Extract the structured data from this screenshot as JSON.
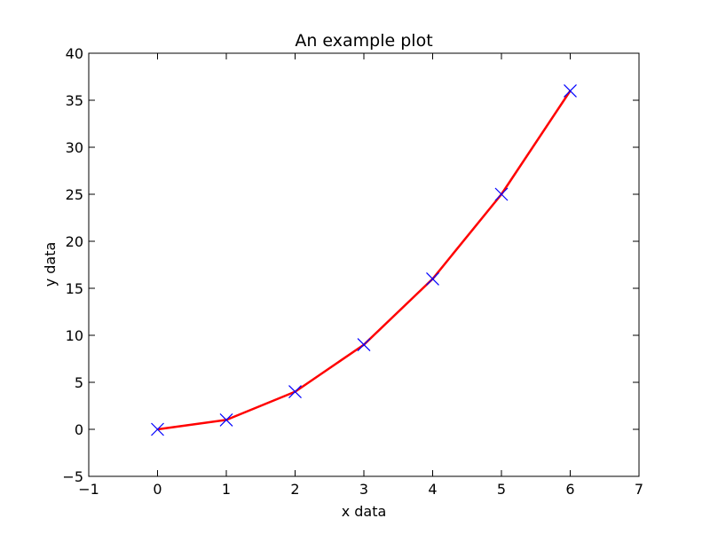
{
  "chart_data": {
    "type": "line",
    "title": "An example plot",
    "xlabel": "x data",
    "ylabel": "y data",
    "xlim": [
      -1,
      7
    ],
    "ylim": [
      -5,
      40
    ],
    "xticks": [
      -1,
      0,
      1,
      2,
      3,
      4,
      5,
      6,
      7
    ],
    "yticks": [
      -5,
      0,
      5,
      10,
      15,
      20,
      25,
      30,
      35,
      40
    ],
    "grid": false,
    "series": [
      {
        "x": [
          0,
          1,
          2,
          3,
          4,
          5,
          6
        ],
        "y": [
          0,
          1,
          4,
          9,
          16,
          25,
          36
        ],
        "line_color": "#ff0000",
        "marker": "x",
        "marker_color": "#0000ff"
      }
    ]
  }
}
